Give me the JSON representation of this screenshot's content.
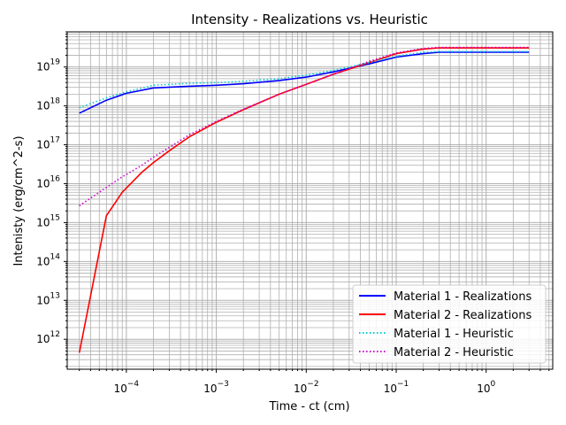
{
  "chart_data": {
    "type": "line",
    "title": "Intensity - Realizations vs. Heuristic",
    "xlabel": "Time - ct (cm)",
    "ylabel": "Intenisty (erg/cm^2-s)",
    "xscale": "log",
    "yscale": "log",
    "xlim": [
      2.2e-05,
      5.5
    ],
    "ylim": [
      170000000000.0,
      8e+19
    ],
    "grid": "both-major-and-minor",
    "legend_position": "lower-right",
    "x_ticks": [
      {
        "base": "10",
        "exp": "−4",
        "value": 0.0001
      },
      {
        "base": "10",
        "exp": "−3",
        "value": 0.001
      },
      {
        "base": "10",
        "exp": "−2",
        "value": 0.01
      },
      {
        "base": "10",
        "exp": "−1",
        "value": 0.1
      },
      {
        "base": "10",
        "exp": "0",
        "value": 1
      }
    ],
    "y_ticks": [
      {
        "base": "10",
        "exp": "12",
        "value": 1000000000000.0
      },
      {
        "base": "10",
        "exp": "13",
        "value": 10000000000000.0
      },
      {
        "base": "10",
        "exp": "14",
        "value": 100000000000000.0
      },
      {
        "base": "10",
        "exp": "15",
        "value": 1000000000000000.0
      },
      {
        "base": "10",
        "exp": "16",
        "value": 1e+16
      },
      {
        "base": "10",
        "exp": "17",
        "value": 1e+17
      },
      {
        "base": "10",
        "exp": "18",
        "value": 1e+18
      },
      {
        "base": "10",
        "exp": "19",
        "value": 1e+19
      }
    ],
    "series": [
      {
        "name": "Material 1 - Realizations",
        "color": "#0000ff",
        "style": "solid",
        "x": [
          3e-05,
          6e-05,
          0.0001,
          0.0002,
          0.0005,
          0.001,
          0.002,
          0.005,
          0.01,
          0.02,
          0.05,
          0.1,
          0.2,
          0.3,
          1,
          3
        ],
        "y": [
          6.5e+17,
          1.4e+18,
          2.1e+18,
          2.9e+18,
          3.2e+18,
          3.4e+18,
          3.7e+18,
          4.5e+18,
          5.5e+18,
          7.5e+18,
          1.2e+19,
          1.8e+19,
          2.2e+19,
          2.4e+19,
          2.4e+19,
          2.4e+19
        ]
      },
      {
        "name": "Material 2 - Realizations",
        "color": "#ff0000",
        "style": "solid",
        "x": [
          3e-05,
          6e-05,
          9e-05,
          0.00015,
          0.0002,
          0.0003,
          0.0005,
          0.001,
          0.002,
          0.005,
          0.01,
          0.02,
          0.05,
          0.1,
          0.2,
          0.3,
          1,
          3
        ],
        "y": [
          450000000000.0,
          1500000000000000.0,
          6000000000000000.0,
          2e+16,
          3.5e+16,
          7e+16,
          1.6e+17,
          3.8e+17,
          8e+17,
          2e+18,
          3.6e+18,
          6.5e+18,
          1.3e+19,
          2.2e+19,
          2.9e+19,
          3.1e+19,
          3.1e+19,
          3.1e+19
        ]
      },
      {
        "name": "Material 1 - Heuristic",
        "color": "#00ced1",
        "style": "dotted",
        "x": [
          3e-05,
          6e-05,
          0.0001,
          0.0002,
          0.0005,
          0.001,
          0.002,
          0.005,
          0.01,
          0.02,
          0.05,
          0.1,
          0.2,
          0.3,
          1,
          3
        ],
        "y": [
          9e+17,
          1.6e+18,
          2.3e+18,
          3.4e+18,
          3.8e+18,
          4e+18,
          4.3e+18,
          5e+18,
          6.2e+18,
          8.2e+18,
          1.3e+19,
          1.9e+19,
          2.4e+19,
          2.5e+19,
          2.5e+19,
          2.5e+19
        ]
      },
      {
        "name": "Material 2 - Heuristic",
        "color": "#cc00cc",
        "style": "dotted",
        "x": [
          3e-05,
          6e-05,
          9e-05,
          0.00015,
          0.0002,
          0.0003,
          0.0005,
          0.001,
          0.002,
          0.005,
          0.01,
          0.02,
          0.05,
          0.1,
          0.2,
          0.3,
          1,
          3
        ],
        "y": [
          2700000000000000.0,
          8000000000000000.0,
          1.5e+16,
          3e+16,
          4.8e+16,
          8.5e+16,
          1.8e+17,
          4e+17,
          8.2e+17,
          2e+18,
          3.6e+18,
          6.5e+18,
          1.4e+19,
          2.3e+19,
          3e+19,
          3.2e+19,
          3.2e+19,
          3.2e+19
        ]
      }
    ]
  }
}
